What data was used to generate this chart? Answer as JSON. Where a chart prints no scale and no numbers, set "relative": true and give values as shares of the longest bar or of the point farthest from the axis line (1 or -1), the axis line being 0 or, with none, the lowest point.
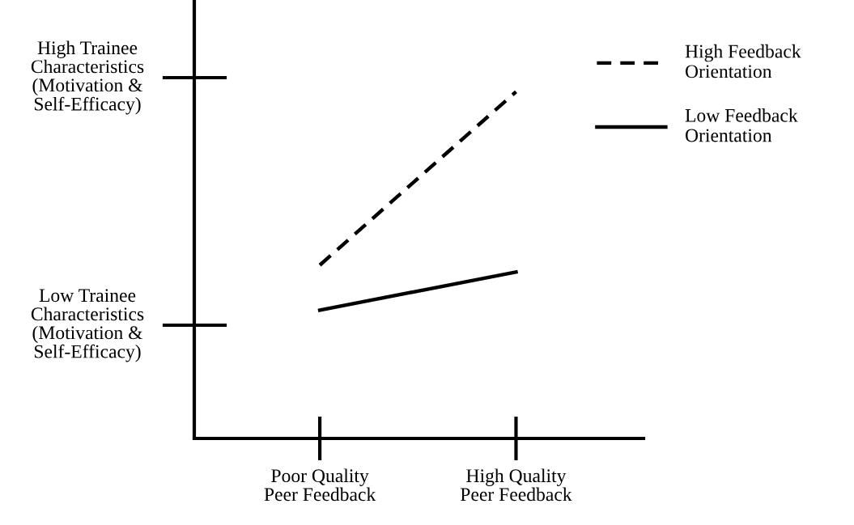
{
  "chart_data": {
    "type": "line",
    "relative": true,
    "categories": [
      "Poor Quality\nPeer Feedback",
      "High Quality\nPeer Feedback"
    ],
    "series": [
      {
        "name": "High Feedback\nOrientation",
        "color": "#000000",
        "line_style": "dashed",
        "values": [
          0.5,
          1.0
        ]
      },
      {
        "name": "Low Feedback\nOrientation",
        "color": "#000000",
        "line_style": "solid",
        "values": [
          0.37,
          0.48
        ]
      }
    ],
    "annotations": [
      "High Trainee\nCharacteristics\n(Motivation &\nSelf-Efficacy)",
      "Low Trainee\nCharacteristics\n(Motivation &\nSelf-Efficacy)"
    ],
    "legend": "right",
    "grid": false,
    "marker": "none"
  }
}
